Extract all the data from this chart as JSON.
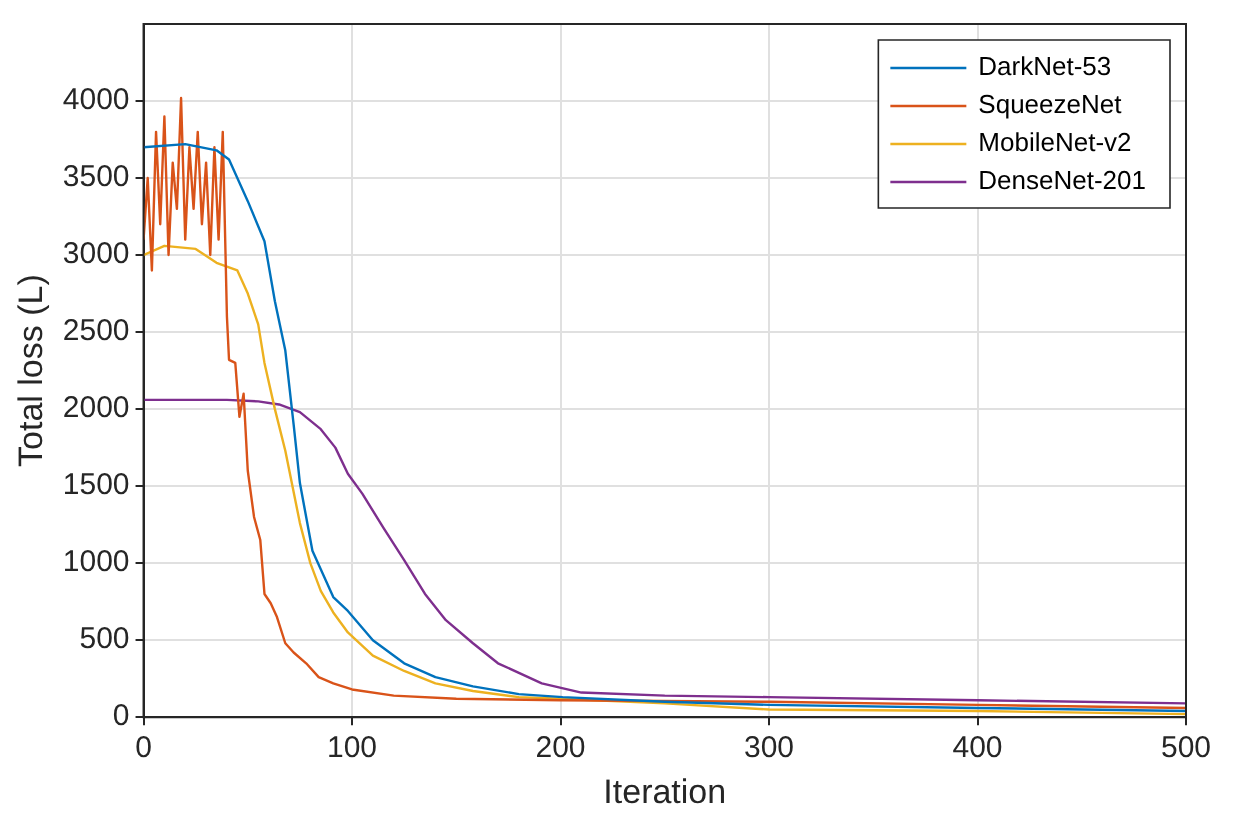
{
  "chart_data": {
    "type": "line",
    "xlabel": "Iteration",
    "ylabel": "Total loss (L)",
    "xlim": [
      0,
      500
    ],
    "xticks": [
      0,
      100,
      200,
      300,
      400,
      500
    ],
    "ylim": [
      0,
      4500
    ],
    "yticks": [
      0,
      500,
      1000,
      1500,
      2000,
      2500,
      3000,
      3500,
      4000
    ],
    "grid": true,
    "legend": "top right",
    "marker": "none",
    "line_style": "solid",
    "series": [
      {
        "name": "DarkNet-53",
        "color": "#0072bd",
        "x": [
          0,
          20,
          35,
          41,
          50,
          58,
          63,
          68,
          72,
          75,
          81,
          91,
          98,
          110,
          125,
          140,
          158,
          180,
          201,
          250,
          300,
          400,
          500
        ],
        "values": [
          3700,
          3720,
          3680,
          3620,
          3350,
          3090,
          2700,
          2380,
          1900,
          1520,
          1080,
          780,
          690,
          500,
          350,
          260,
          200,
          150,
          130,
          100,
          80,
          60,
          40
        ]
      },
      {
        "name": "SqueezeNet",
        "color": "#d95319",
        "x": [
          0,
          2,
          4,
          6,
          8,
          10,
          12,
          14,
          16,
          18,
          20,
          22,
          24,
          26,
          28,
          30,
          32,
          34,
          36,
          38,
          40,
          41,
          44,
          46,
          48,
          50,
          53,
          56,
          58,
          61,
          64,
          68,
          72,
          78,
          84,
          91,
          100,
          120,
          150,
          200,
          300,
          400,
          500
        ],
        "values": [
          3100,
          3500,
          2900,
          3800,
          3200,
          3900,
          3000,
          3600,
          3300,
          4020,
          3100,
          3700,
          3300,
          3800,
          3200,
          3600,
          3000,
          3700,
          3100,
          3800,
          2600,
          2320,
          2300,
          1950,
          2100,
          1600,
          1300,
          1150,
          800,
          740,
          650,
          480,
          420,
          350,
          260,
          220,
          180,
          140,
          120,
          110,
          100,
          80,
          60
        ]
      },
      {
        "name": "MobileNet-v2",
        "color": "#edb120",
        "x": [
          0,
          10,
          25,
          35,
          45,
          50,
          55,
          58,
          63,
          68,
          75,
          80,
          85,
          91,
          98,
          110,
          125,
          140,
          158,
          180,
          200,
          250,
          300,
          400,
          500
        ],
        "values": [
          3000,
          3060,
          3040,
          2950,
          2900,
          2750,
          2550,
          2300,
          2000,
          1730,
          1260,
          1000,
          820,
          680,
          550,
          400,
          300,
          220,
          170,
          130,
          120,
          90,
          50,
          40,
          20
        ]
      },
      {
        "name": "DenseNet-201",
        "color": "#7e2f8e",
        "x": [
          0,
          40,
          55,
          65,
          75,
          85,
          92,
          98,
          105,
          115,
          125,
          135,
          145,
          158,
          170,
          191,
          210,
          250,
          300,
          400,
          500
        ],
        "values": [
          2060,
          2060,
          2050,
          2030,
          1980,
          1870,
          1750,
          1580,
          1450,
          1230,
          1020,
          800,
          630,
          480,
          350,
          220,
          160,
          140,
          130,
          110,
          90
        ]
      }
    ]
  }
}
